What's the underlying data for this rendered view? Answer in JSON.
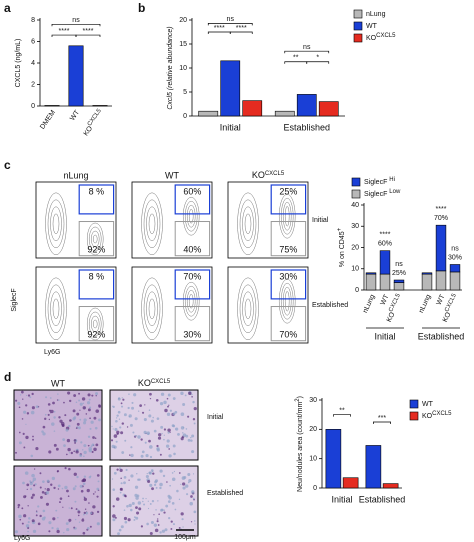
{
  "panel_labels": [
    "a",
    "b",
    "c",
    "d"
  ],
  "chart_data": [
    {
      "type": "bar",
      "ylabel": "CXCL5 (ng/mL)",
      "categories": [
        "DMEM",
        "WT",
        {
          "text": "KO",
          "sup": "CXCL5"
        }
      ],
      "values": [
        0.05,
        5.6,
        0.05
      ],
      "colors": [
        "#ffffff",
        "#1a3fd6",
        "#e52b20"
      ],
      "ylim": [
        0,
        8
      ],
      "yticks": [
        0,
        2,
        4,
        6,
        8
      ],
      "annotations": [
        "****",
        "****",
        "ns"
      ]
    },
    {
      "type": "grouped_bar",
      "ylabel": "Cxcl5 (relative abundance)",
      "categories": [
        "Initial",
        "Established"
      ],
      "series": [
        {
          "name": "nLung",
          "color": "#b8b8b8",
          "values": [
            1,
            1
          ]
        },
        {
          "name": "WT",
          "color": "#1a3fd6",
          "values": [
            11.5,
            4.5
          ]
        },
        {
          "name": {
            "text": "KO",
            "sup": "CXCL5"
          },
          "color": "#e52b20",
          "values": [
            3.2,
            3.0
          ]
        }
      ],
      "ylim": [
        0,
        20
      ],
      "yticks": [
        0,
        5,
        10,
        15,
        20
      ],
      "annotations": [
        "ns",
        "****",
        "****",
        "ns",
        "**",
        "*"
      ]
    },
    {
      "type": "stacked_bar",
      "ylabel": {
        "text": "% on CD45",
        "sup": "+"
      },
      "groups": [
        "Initial",
        "Established"
      ],
      "categories": [
        "nLung",
        "WT",
        {
          "text": "KO",
          "sup": "CXCL5"
        },
        "nLung",
        "WT",
        {
          "text": "KO",
          "sup": "CXCL5"
        }
      ],
      "series": [
        {
          "name": {
            "text": "SiglecF ",
            "sup": "Low"
          },
          "color": "#b8b8b8",
          "values": [
            7.5,
            7.5,
            3.5,
            7.5,
            9,
            8.5
          ]
        },
        {
          "name": {
            "text": "SiglecF ",
            "sup": "Hi"
          },
          "color": "#1a3fd6",
          "values": [
            0.6,
            11,
            1.2,
            0.6,
            21.5,
            3.5
          ]
        }
      ],
      "legend_order": [
        1,
        0
      ],
      "ylim": [
        0,
        40
      ],
      "yticks": [
        0,
        10,
        20,
        30,
        40
      ],
      "annotations": [
        "****",
        "60%",
        "ns",
        "25%",
        "****",
        "70%",
        "ns",
        "30%"
      ]
    },
    {
      "type": "grouped_bar",
      "ylabel": {
        "text": "Neu/nodules area (count/mm",
        "sup": "2",
        "tail": ")"
      },
      "categories": [
        "Initial",
        "Established"
      ],
      "series": [
        {
          "name": "WT",
          "color": "#1a3fd6",
          "values": [
            20,
            14.5
          ]
        },
        {
          "name": {
            "text": "KO",
            "sup": "CXCL5"
          },
          "color": "#e52b20",
          "values": [
            3.5,
            1.5
          ]
        }
      ],
      "ylim": [
        0,
        30
      ],
      "yticks": [
        0,
        10,
        20,
        30
      ],
      "annotations": [
        "**",
        "***"
      ]
    }
  ],
  "flow": {
    "columns": [
      "nLung",
      "WT",
      {
        "text": "KO",
        "sup": "CXCL5"
      }
    ],
    "rows": [
      "Initial",
      "Established"
    ],
    "gate_top": [
      [
        "8 %",
        "60%",
        "25%"
      ],
      [
        "8 %",
        "70%",
        "30%"
      ]
    ],
    "gate_bottom": [
      [
        "92%",
        "40%",
        "75%"
      ],
      [
        "92%",
        "30%",
        "70%"
      ]
    ],
    "ylabel": "SiglecF",
    "xlabel": "Ly6G"
  },
  "histology": {
    "columns": [
      "WT",
      {
        "text": "KO",
        "sup": "CXCL5"
      }
    ],
    "rows": [
      "Initial",
      "Established"
    ],
    "stain": "Ly6G",
    "scale": "100μm"
  }
}
